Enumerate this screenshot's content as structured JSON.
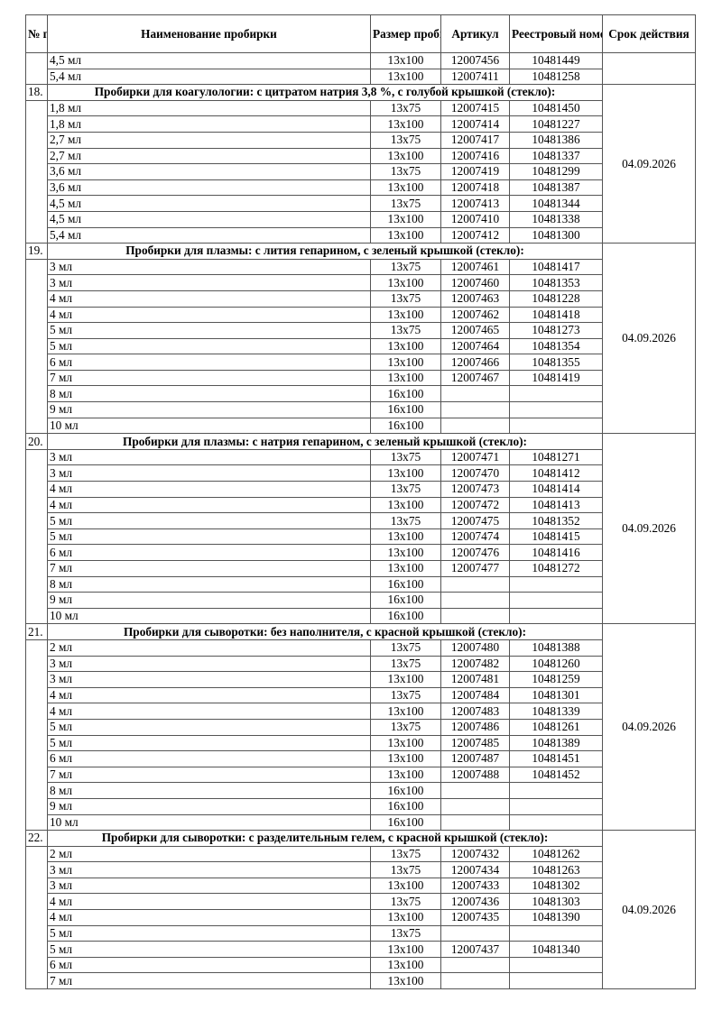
{
  "headers": {
    "num": "№ п/п",
    "name": "Наименование пробирки",
    "size": "Размер пробирки",
    "article": "Артикул",
    "registry": "Реестровый номер",
    "expiry": "Срок действия"
  },
  "sections": [
    {
      "num": "",
      "title": "",
      "expiry": "",
      "rows": [
        [
          "4,5 мл",
          "13x100",
          "12007456",
          "10481449"
        ],
        [
          "5,4 мл",
          "13x100",
          "12007411",
          "10481258"
        ]
      ]
    },
    {
      "num": "18.",
      "title": "Пробирки для коагулологии: с цитратом натрия 3,8 %, с голубой крышкой (стекло):",
      "expiry": "04.09.2026",
      "rows": [
        [
          "1,8 мл",
          "13x75",
          "12007415",
          "10481450"
        ],
        [
          "1,8 мл",
          "13x100",
          "12007414",
          "10481227"
        ],
        [
          "2,7 мл",
          "13x75",
          "12007417",
          "10481386"
        ],
        [
          "2,7 мл",
          "13x100",
          "12007416",
          "10481337"
        ],
        [
          "3,6 мл",
          "13x75",
          "12007419",
          "10481299"
        ],
        [
          "3,6 мл",
          "13x100",
          "12007418",
          "10481387"
        ],
        [
          "4,5 мл",
          "13x75",
          "12007413",
          "10481344"
        ],
        [
          "4,5 мл",
          "13x100",
          "12007410",
          "10481338"
        ],
        [
          "5,4 мл",
          "13x100",
          "12007412",
          "10481300"
        ]
      ]
    },
    {
      "num": "19.",
      "title": "Пробирки для плазмы: с лития гепарином, с зеленый крышкой (стекло):",
      "expiry": "04.09.2026",
      "rows": [
        [
          "3 мл",
          "13x75",
          "12007461",
          "10481417"
        ],
        [
          "3 мл",
          "13x100",
          "12007460",
          "10481353"
        ],
        [
          "4 мл",
          "13x75",
          "12007463",
          "10481228"
        ],
        [
          "4 мл",
          "13x100",
          "12007462",
          "10481418"
        ],
        [
          "5 мл",
          "13x75",
          "12007465",
          "10481273"
        ],
        [
          "5 мл",
          "13x100",
          "12007464",
          "10481354"
        ],
        [
          "6 мл",
          "13x100",
          "12007466",
          "10481355"
        ],
        [
          "7 мл",
          "13x100",
          "12007467",
          "10481419"
        ],
        [
          "8 мл",
          "16x100",
          "",
          ""
        ],
        [
          "9 мл",
          "16x100",
          "",
          ""
        ],
        [
          "10 мл",
          "16x100",
          "",
          ""
        ]
      ]
    },
    {
      "num": "20.",
      "title": "Пробирки для плазмы: с натрия гепарином, с зеленый крышкой (стекло):",
      "expiry": "04.09.2026",
      "rows": [
        [
          "3 мл",
          "13x75",
          "12007471",
          "10481271"
        ],
        [
          "3 мл",
          "13x100",
          "12007470",
          "10481412"
        ],
        [
          "4 мл",
          "13x75",
          "12007473",
          "10481414"
        ],
        [
          "4 мл",
          "13x100",
          "12007472",
          "10481413"
        ],
        [
          "5 мл",
          "13x75",
          "12007475",
          "10481352"
        ],
        [
          "5 мл",
          "13x100",
          "12007474",
          "10481415"
        ],
        [
          "6 мл",
          "13x100",
          "12007476",
          "10481416"
        ],
        [
          "7 мл",
          "13x100",
          "12007477",
          "10481272"
        ],
        [
          "8 мл",
          "16x100",
          "",
          ""
        ],
        [
          "9 мл",
          "16x100",
          "",
          ""
        ],
        [
          "10 мл",
          "16x100",
          "",
          ""
        ]
      ]
    },
    {
      "num": "21.",
      "title": "Пробирки для сыворотки: без наполнителя, с красной крышкой (стекло):",
      "expiry": "04.09.2026",
      "rows": [
        [
          "2 мл",
          "13x75",
          "12007480",
          "10481388"
        ],
        [
          "3 мл",
          "13x75",
          "12007482",
          "10481260"
        ],
        [
          "3 мл",
          "13x100",
          "12007481",
          "10481259"
        ],
        [
          "4 мл",
          "13x75",
          "12007484",
          "10481301"
        ],
        [
          "4 мл",
          "13x100",
          "12007483",
          "10481339"
        ],
        [
          "5 мл",
          "13x75",
          "12007486",
          "10481261"
        ],
        [
          "5 мл",
          "13x100",
          "12007485",
          "10481389"
        ],
        [
          "6 мл",
          "13x100",
          "12007487",
          "10481451"
        ],
        [
          "7 мл",
          "13x100",
          "12007488",
          "10481452"
        ],
        [
          "8 мл",
          "16x100",
          "",
          ""
        ],
        [
          "9 мл",
          "16x100",
          "",
          ""
        ],
        [
          "10 мл",
          "16x100",
          "",
          ""
        ]
      ]
    },
    {
      "num": "22.",
      "title": "Пробирки для сыворотки: с разделительным гелем, с красной крышкой (стекло):",
      "expiry": "04.09.2026",
      "rows": [
        [
          "2 мл",
          "13x75",
          "12007432",
          "10481262"
        ],
        [
          "3 мл",
          "13x75",
          "12007434",
          "10481263"
        ],
        [
          "3 мл",
          "13x100",
          "12007433",
          "10481302"
        ],
        [
          "4 мл",
          "13x75",
          "12007436",
          "10481303"
        ],
        [
          "4 мл",
          "13x100",
          "12007435",
          "10481390"
        ],
        [
          "5 мл",
          "13x75",
          "",
          ""
        ],
        [
          "5 мл",
          "13x100",
          "12007437",
          "10481340"
        ],
        [
          "6 мл",
          "13x100",
          "",
          ""
        ],
        [
          "7 мл",
          "13x100",
          "",
          ""
        ]
      ]
    }
  ]
}
